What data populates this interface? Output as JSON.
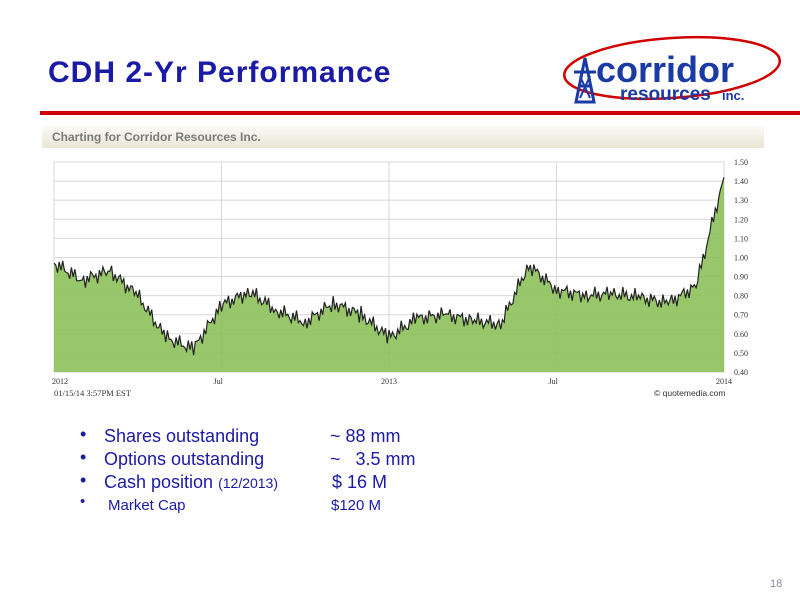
{
  "slide": {
    "title": "CDH 2-Yr Performance",
    "page_number": "18",
    "accent_color": "#d10000",
    "title_color": "#1a1aa6"
  },
  "logo": {
    "text_main": "corridor",
    "text_sub": "resources",
    "text_suffix": "inc.",
    "icon": "derrick-icon",
    "colors": {
      "text": "#1a3aa6",
      "oval": "#d10000"
    }
  },
  "chart_header": "Charting for Corridor Resources Inc.",
  "chart_data": {
    "type": "area",
    "x_tick_labels": [
      "2012",
      "Jul",
      "2013",
      "Jul",
      "2014"
    ],
    "y_tick_labels": [
      "1.50",
      "1.40",
      "1.30",
      "1.20",
      "1.10",
      "1.00",
      "0.90",
      "0.80",
      "0.70",
      "0.60",
      "0.50",
      "0.40"
    ],
    "ylim": [
      0.4,
      1.5
    ],
    "grid": true,
    "x": [
      "2012-01",
      "2012-02",
      "2012-03",
      "2012-04",
      "2012-05",
      "2012-06",
      "2012-07",
      "2012-08",
      "2012-09",
      "2012-10",
      "2012-11",
      "2012-12",
      "2013-01",
      "2013-02",
      "2013-03",
      "2013-04",
      "2013-05",
      "2013-06",
      "2013-07",
      "2013-08",
      "2013-09",
      "2013-10",
      "2013-11",
      "2013-12",
      "2014-01"
    ],
    "values": [
      0.97,
      0.88,
      0.93,
      0.8,
      0.58,
      0.52,
      0.75,
      0.82,
      0.72,
      0.66,
      0.76,
      0.7,
      0.58,
      0.68,
      0.7,
      0.67,
      0.65,
      0.96,
      0.83,
      0.8,
      0.81,
      0.79,
      0.76,
      0.85,
      1.42
    ],
    "timestamp": "01/15/14 3:57PM EST",
    "source": "© quotemedia.com",
    "colors": {
      "fill": "#8cc15a",
      "line": "#222222",
      "grid": "#d8d8d8"
    }
  },
  "bullets": [
    {
      "label": "Shares outstanding",
      "qualifier": "",
      "value": "~ 88 mm"
    },
    {
      "label": "Options outstanding",
      "qualifier": "",
      "value": "~   3.5 mm"
    },
    {
      "label": "Cash position ",
      "qualifier": "(12/2013)",
      "value": "$ 16 M"
    },
    {
      "label": "Market Cap",
      "qualifier": "",
      "value": "$120 M"
    }
  ],
  "bullet_char": "•"
}
